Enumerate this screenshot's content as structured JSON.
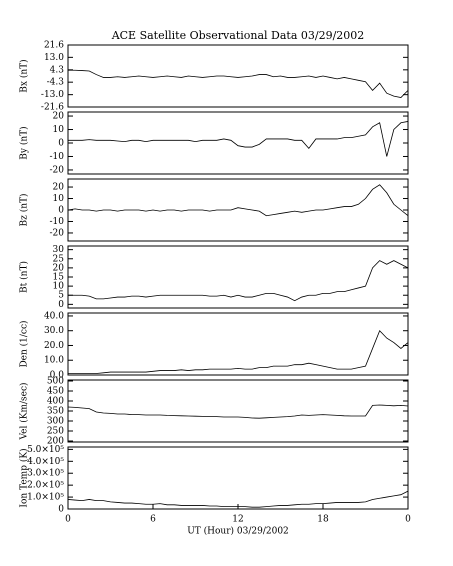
{
  "chart_data": [
    {
      "type": "line",
      "title": "ACE Satellite Observational Data   03/29/2002",
      "ylabel": "Bx (nT)",
      "xlim": [
        0,
        24
      ],
      "x": [
        0,
        0.5,
        1,
        1.5,
        2,
        2.5,
        3,
        3.5,
        4,
        4.5,
        5,
        5.5,
        6,
        6.5,
        7,
        7.5,
        8,
        8.5,
        9,
        9.5,
        10,
        10.5,
        11,
        11.5,
        12,
        12.5,
        13,
        13.5,
        14,
        14.5,
        15,
        15.5,
        16,
        16.5,
        17,
        17.5,
        18,
        18.5,
        19,
        19.5,
        20,
        20.5,
        21,
        21.5,
        22,
        22.5,
        23,
        23.5,
        24
      ],
      "values": [
        4,
        4,
        3.8,
        3.5,
        1,
        -1,
        -1,
        -0.5,
        -1,
        -0.5,
        0,
        -0.5,
        -1,
        -0.5,
        0,
        -0.5,
        -1,
        0,
        -0.5,
        -1,
        -0.5,
        0,
        0,
        -0.5,
        -1,
        -0.5,
        0,
        1,
        1,
        -0.5,
        0,
        -1,
        -1,
        -0.5,
        0,
        -1,
        0,
        -1,
        -2,
        -1,
        -2,
        -3,
        -4,
        -10,
        -5,
        -12,
        -14,
        -15,
        -10
      ],
      "color": "#000000",
      "ylim": [
        -21.6,
        21.6
      ],
      "yticks": [
        -21.6,
        {
          "value": -13.0,
          "label": "-13.0"
        },
        -4.3,
        4.3,
        {
          "value": 13.0,
          "label": "13.0"
        },
        21.6
      ]
    },
    {
      "type": "line",
      "ylabel": "By (nT)",
      "xlim": [
        0,
        24
      ],
      "x": [
        0,
        0.5,
        1,
        1.5,
        2,
        2.5,
        3,
        3.5,
        4,
        4.5,
        5,
        5.5,
        6,
        6.5,
        7,
        7.5,
        8,
        8.5,
        9,
        9.5,
        10,
        10.5,
        11,
        11.5,
        12,
        12.5,
        13,
        13.5,
        14,
        14.5,
        15,
        15.5,
        16,
        16.5,
        17,
        17.5,
        18,
        18.5,
        19,
        19.5,
        20,
        20.5,
        21,
        21.5,
        22,
        22.5,
        23,
        23.5,
        24
      ],
      "values": [
        2,
        2,
        2,
        2.5,
        2,
        2,
        2,
        1.5,
        1,
        2,
        2,
        1,
        2,
        2,
        2,
        2,
        2,
        2,
        1,
        2,
        2,
        2,
        3,
        2,
        -2,
        -3,
        -3,
        -1,
        3,
        3,
        3,
        3,
        2,
        2,
        -4,
        3,
        3,
        3,
        3,
        4,
        4,
        5,
        6,
        12,
        15,
        -10,
        10,
        15,
        16
      ],
      "color": "#000000",
      "ylim": [
        -23,
        23
      ],
      "yticks": [
        -20,
        -10,
        0,
        10,
        20
      ]
    },
    {
      "type": "line",
      "ylabel": "Bz (nT)",
      "xlim": [
        0,
        24
      ],
      "x": [
        0,
        0.5,
        1,
        1.5,
        2,
        2.5,
        3,
        3.5,
        4,
        4.5,
        5,
        5.5,
        6,
        6.5,
        7,
        7.5,
        8,
        8.5,
        9,
        9.5,
        10,
        10.5,
        11,
        11.5,
        12,
        12.5,
        13,
        13.5,
        14,
        14.5,
        15,
        15.5,
        16,
        16.5,
        17,
        17.5,
        18,
        18.5,
        19,
        19.5,
        20,
        20.5,
        21,
        21.5,
        22,
        22.5,
        23,
        23.5,
        24
      ],
      "values": [
        0,
        1,
        0,
        0,
        -1,
        0,
        0,
        -1,
        0,
        0,
        0,
        -1,
        0,
        -1,
        0,
        0,
        -1,
        0,
        0,
        0,
        -1,
        0,
        0,
        0,
        2,
        1,
        0,
        -1,
        -5,
        -4,
        -3,
        -2,
        -1,
        -2,
        -1,
        0,
        0,
        1,
        2,
        3,
        3,
        5,
        10,
        18,
        22,
        15,
        5,
        0,
        -5
      ],
      "color": "#000000",
      "ylim": [
        -27,
        27
      ],
      "yticks": [
        -20,
        -10,
        0,
        10,
        20
      ]
    },
    {
      "type": "line",
      "ylabel": "Bt (nT)",
      "xlim": [
        0,
        24
      ],
      "x": [
        0,
        0.5,
        1,
        1.5,
        2,
        2.5,
        3,
        3.5,
        4,
        4.5,
        5,
        5.5,
        6,
        6.5,
        7,
        7.5,
        8,
        8.5,
        9,
        9.5,
        10,
        10.5,
        11,
        11.5,
        12,
        12.5,
        13,
        13.5,
        14,
        14.5,
        15,
        15.5,
        16,
        16.5,
        17,
        17.5,
        18,
        18.5,
        19,
        19.5,
        20,
        20.5,
        21,
        21.5,
        22,
        22.5,
        23,
        23.5,
        24
      ],
      "values": [
        5,
        5,
        5,
        4.5,
        3,
        3,
        3.5,
        4,
        4,
        4.5,
        4.5,
        4,
        4.5,
        5,
        5,
        5,
        5,
        5,
        5,
        5,
        4.5,
        4.5,
        5,
        4,
        5,
        4,
        4,
        5,
        6,
        6,
        5,
        4,
        2,
        4,
        5,
        5,
        6,
        6,
        7,
        7,
        8,
        9,
        10,
        20,
        24,
        22,
        24,
        22,
        20
      ],
      "color": "#000000",
      "ylim": [
        -2,
        32
      ],
      "yticks": [
        0,
        5,
        10,
        15,
        20,
        25,
        30
      ]
    },
    {
      "type": "line",
      "ylabel": "Den (1/cc)",
      "xlim": [
        0,
        24
      ],
      "x": [
        0,
        0.5,
        1,
        1.5,
        2,
        2.5,
        3,
        3.5,
        4,
        4.5,
        5,
        5.5,
        6,
        6.5,
        7,
        7.5,
        8,
        8.5,
        9,
        9.5,
        10,
        10.5,
        11,
        11.5,
        12,
        12.5,
        13,
        13.5,
        14,
        14.5,
        15,
        15.5,
        16,
        16.5,
        17,
        17.5,
        18,
        18.5,
        19,
        19.5,
        20,
        20.5,
        21,
        21.5,
        22,
        22.5,
        23,
        23.5,
        24
      ],
      "values": [
        1,
        1,
        1,
        1,
        1,
        1.5,
        2,
        2,
        2,
        2,
        2,
        2,
        2.5,
        3,
        3,
        3,
        3.5,
        3,
        3.5,
        3.5,
        4,
        4,
        4,
        4,
        4.5,
        4,
        4,
        5,
        5,
        6,
        6,
        6,
        7,
        7,
        8,
        7,
        6,
        5,
        4,
        4,
        4,
        5,
        6,
        18,
        30,
        25,
        22,
        18,
        22
      ],
      "color": "#000000",
      "ylim": [
        0,
        42
      ],
      "yticks": [
        {
          "value": 0,
          "label": "0.0"
        },
        {
          "value": 10,
          "label": "10.0"
        },
        {
          "value": 20,
          "label": "20.0"
        },
        {
          "value": 30,
          "label": "30.0"
        },
        {
          "value": 40,
          "label": "40.0"
        }
      ]
    },
    {
      "type": "line",
      "ylabel": "Vel (Km/sec)",
      "xlim": [
        0,
        24
      ],
      "x": [
        0,
        0.5,
        1,
        1.5,
        2,
        2.5,
        3,
        3.5,
        4,
        4.5,
        5,
        5.5,
        6,
        6.5,
        7,
        7.5,
        8,
        8.5,
        9,
        9.5,
        10,
        10.5,
        11,
        11.5,
        12,
        12.5,
        13,
        13.5,
        14,
        14.5,
        15,
        15.5,
        16,
        16.5,
        17,
        17.5,
        18,
        18.5,
        19,
        19.5,
        20,
        20.5,
        21,
        21.5,
        22,
        22.5,
        23,
        23.5,
        24
      ],
      "values": [
        370,
        368,
        365,
        362,
        345,
        340,
        338,
        335,
        335,
        332,
        332,
        330,
        330,
        330,
        328,
        327,
        326,
        325,
        324,
        323,
        322,
        322,
        320,
        320,
        320,
        318,
        315,
        314,
        316,
        318,
        320,
        322,
        325,
        330,
        328,
        330,
        332,
        330,
        328,
        326,
        325,
        325,
        325,
        378,
        380,
        378,
        376,
        378,
        375
      ],
      "color": "#000000",
      "ylim": [
        195,
        505
      ],
      "yticks": [
        200,
        250,
        300,
        350,
        400,
        450,
        500
      ]
    },
    {
      "type": "line",
      "ylabel": "Ion Temp (K)",
      "xlabel": "UT (Hour)   03/29/2002",
      "xlim": [
        0,
        24
      ],
      "x": [
        0,
        0.5,
        1,
        1.5,
        2,
        2.5,
        3,
        3.5,
        4,
        4.5,
        5,
        5.5,
        6,
        6.5,
        7,
        7.5,
        8,
        8.5,
        9,
        9.5,
        10,
        10.5,
        11,
        11.5,
        12,
        12.5,
        13,
        13.5,
        14,
        14.5,
        15,
        15.5,
        16,
        16.5,
        17,
        17.5,
        18,
        18.5,
        19,
        19.5,
        20,
        20.5,
        21,
        21.5,
        22,
        22.5,
        23,
        23.5,
        24
      ],
      "values": [
        80000,
        75000,
        70000,
        80000,
        70000,
        70000,
        60000,
        55000,
        50000,
        50000,
        45000,
        40000,
        40000,
        45000,
        35000,
        35000,
        30000,
        30000,
        30000,
        30000,
        25000,
        25000,
        20000,
        20000,
        20000,
        20000,
        15000,
        15000,
        20000,
        25000,
        30000,
        30000,
        35000,
        40000,
        40000,
        45000,
        45000,
        50000,
        55000,
        55000,
        55000,
        55000,
        60000,
        80000,
        90000,
        100000,
        110000,
        120000,
        150000
      ],
      "color": "#000000",
      "ylim": [
        0,
        520000
      ],
      "yticks": [
        0,
        {
          "value": 100000,
          "label": "1.0×10⁵"
        },
        {
          "value": 200000,
          "label": "2.0×10⁵"
        },
        {
          "value": 300000,
          "label": "3.0×10⁵"
        },
        {
          "value": 400000,
          "label": "4.0×10⁵"
        },
        {
          "value": 500000,
          "label": "5.0×10⁵"
        }
      ],
      "xticks": [
        0,
        6,
        12,
        18,
        {
          "value": 24,
          "label": "0"
        }
      ]
    }
  ]
}
